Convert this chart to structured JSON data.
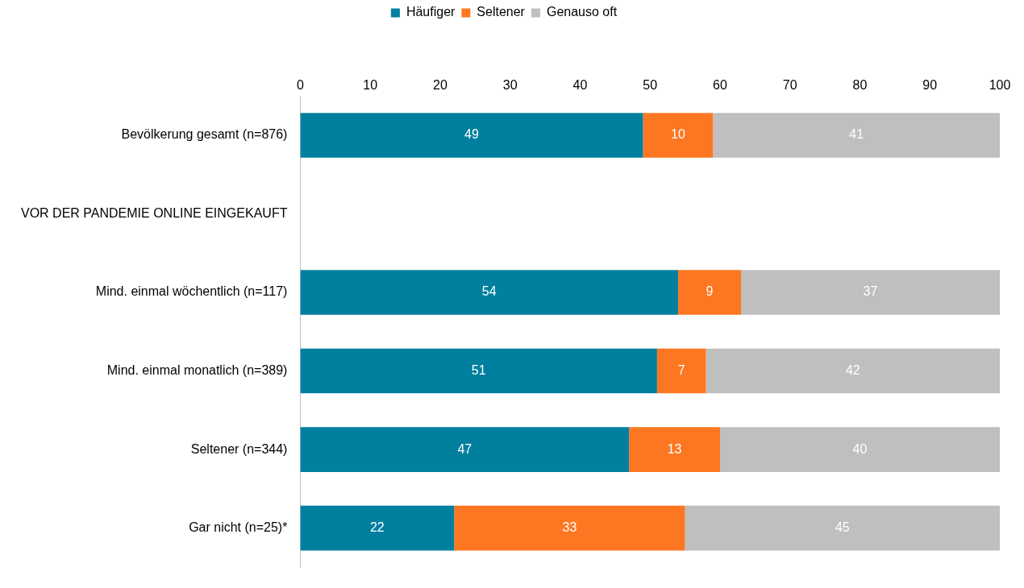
{
  "chart_data": {
    "type": "bar",
    "orientation": "horizontal",
    "stacked": true,
    "categories": [
      "Bevölkerung gesamt (n=876)",
      "VOR DER PANDEMIE ONLINE EINGEKAUFT",
      "Mind. einmal wöchentlich (n=117)",
      "Mind. einmal monatlich (n=389)",
      "Seltener (n=344)",
      "Gar nicht (n=25)*"
    ],
    "series": [
      {
        "name": "Häufiger",
        "color": "#007f9f",
        "values": [
          49,
          null,
          54,
          51,
          47,
          22
        ]
      },
      {
        "name": "Seltener",
        "color": "#fd7722",
        "values": [
          10,
          null,
          9,
          7,
          13,
          33
        ]
      },
      {
        "name": "Genauso oft",
        "color": "#bfbfbf",
        "values": [
          41,
          null,
          37,
          42,
          40,
          45
        ]
      }
    ],
    "xlim": [
      0,
      100
    ],
    "xticks": [
      0,
      10,
      20,
      30,
      40,
      50,
      60,
      70,
      80,
      90,
      100
    ],
    "grid": false,
    "legend": "top",
    "data_labels": true
  }
}
